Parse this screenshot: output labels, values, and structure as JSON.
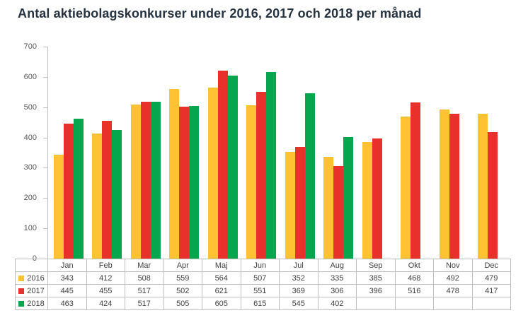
{
  "chart_data": {
    "type": "bar",
    "title": "Antal aktiebolagskonkurser under 2016, 2017 och 2018 per månad",
    "categories": [
      "Jan",
      "Feb",
      "Mar",
      "Apr",
      "Maj",
      "Jun",
      "Jul",
      "Aug",
      "Sep",
      "Okt",
      "Nov",
      "Dec"
    ],
    "series": [
      {
        "name": "2016",
        "color": "#FFC233",
        "values": [
          343,
          412,
          508,
          559,
          564,
          507,
          352,
          335,
          385,
          468,
          492,
          479
        ]
      },
      {
        "name": "2017",
        "color": "#E8312B",
        "values": [
          445,
          455,
          517,
          502,
          621,
          551,
          369,
          306,
          396,
          516,
          478,
          417
        ]
      },
      {
        "name": "2018",
        "color": "#06A64E",
        "values": [
          463,
          424,
          517,
          505,
          605,
          615,
          545,
          402,
          null,
          null,
          null,
          null
        ]
      }
    ],
    "xlabel": "",
    "ylabel": "",
    "ylim": [
      0,
      700
    ],
    "yticks": [
      0,
      100,
      200,
      300,
      400,
      500,
      600,
      700
    ],
    "grid": false,
    "legend_position": "table-left"
  },
  "colors": {
    "title_text": "#26323F",
    "axis_line": "#BFBFBF",
    "axis_label_text": "#595959",
    "table_border": "#BFBFBF",
    "table_text": "#404040",
    "background": "#FFFFFF"
  }
}
